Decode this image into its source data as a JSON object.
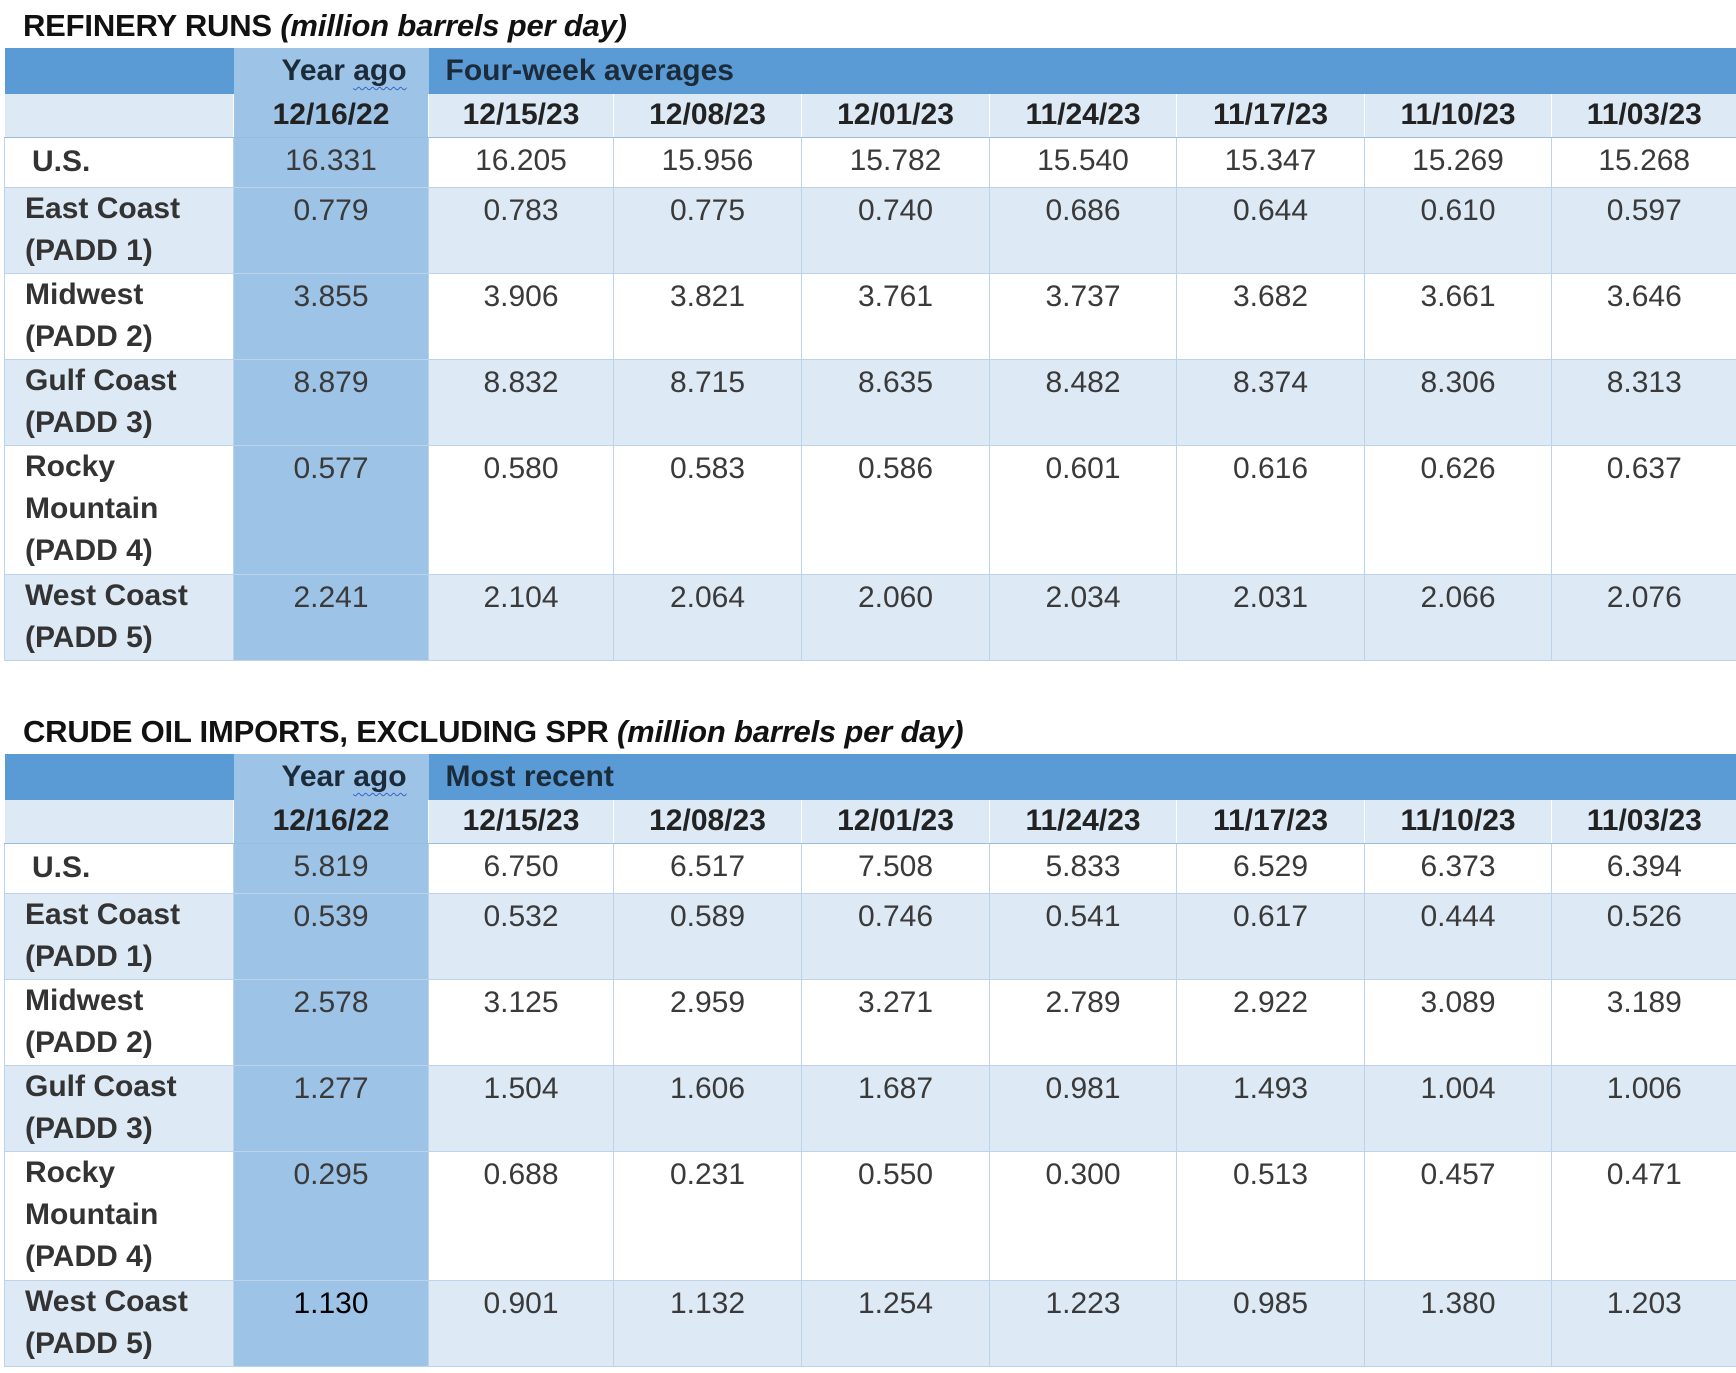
{
  "columns": {
    "year_ago": "12/16/22",
    "recent": [
      "12/15/23",
      "12/08/23",
      "12/01/23",
      "11/24/23",
      "11/17/23",
      "11/10/23",
      "11/03/23"
    ]
  },
  "refinery": {
    "title": "REFINERY RUNS",
    "unit": "(million barrels per day)",
    "year_ago_word1": "Year",
    "year_ago_word2": "ago",
    "group_label": "Four-week averages",
    "rows": [
      {
        "label": [
          "U.S."
        ],
        "values": [
          "16.331",
          "16.205",
          "15.956",
          "15.782",
          "15.540",
          "15.347",
          "15.269",
          "15.268"
        ]
      },
      {
        "label": [
          "East Coast",
          "(PADD 1)"
        ],
        "values": [
          "0.779",
          "0.783",
          "0.775",
          "0.740",
          "0.686",
          "0.644",
          "0.610",
          "0.597"
        ]
      },
      {
        "label": [
          "Midwest",
          "(PADD 2)"
        ],
        "values": [
          "3.855",
          "3.906",
          "3.821",
          "3.761",
          "3.737",
          "3.682",
          "3.661",
          "3.646"
        ]
      },
      {
        "label": [
          "Gulf Coast",
          "(PADD 3)"
        ],
        "values": [
          "8.879",
          "8.832",
          "8.715",
          "8.635",
          "8.482",
          "8.374",
          "8.306",
          "8.313"
        ]
      },
      {
        "label": [
          "Rocky",
          "Mountain",
          "(PADD 4)"
        ],
        "values": [
          "0.577",
          "0.580",
          "0.583",
          "0.586",
          "0.601",
          "0.616",
          "0.626",
          "0.637"
        ]
      },
      {
        "label": [
          "West Coast",
          "(PADD 5)"
        ],
        "values": [
          "2.241",
          "2.104",
          "2.064",
          "2.060",
          "2.034",
          "2.031",
          "2.066",
          "2.076"
        ]
      }
    ]
  },
  "imports": {
    "title": "CRUDE OIL IMPORTS, EXCLUDING SPR",
    "unit": "(million barrels per day)",
    "year_ago_word1": "Year",
    "year_ago_word2": "ago",
    "group_label": "Most recent",
    "rows": [
      {
        "label": [
          "U.S."
        ],
        "values": [
          "5.819",
          "6.750",
          "6.517",
          "7.508",
          "5.833",
          "6.529",
          "6.373",
          "6.394"
        ]
      },
      {
        "label": [
          "East Coast",
          "(PADD 1)"
        ],
        "values": [
          "0.539",
          "0.532",
          "0.589",
          "0.746",
          "0.541",
          "0.617",
          "0.444",
          "0.526"
        ]
      },
      {
        "label": [
          "Midwest",
          "(PADD 2)"
        ],
        "values": [
          "2.578",
          "3.125",
          "2.959",
          "3.271",
          "2.789",
          "2.922",
          "3.089",
          "3.189"
        ]
      },
      {
        "label": [
          "Gulf Coast",
          "(PADD 3)"
        ],
        "values": [
          "1.277",
          "1.504",
          "1.606",
          "1.687",
          "0.981",
          "1.493",
          "1.004",
          "1.006"
        ]
      },
      {
        "label": [
          "Rocky",
          "Mountain",
          "(PADD 4)"
        ],
        "values": [
          "0.295",
          "0.688",
          "0.231",
          "0.550",
          "0.300",
          "0.513",
          "0.457",
          "0.471"
        ]
      },
      {
        "label": [
          "West Coast",
          "(PADD 5)"
        ],
        "values": [
          "1.130",
          "0.901",
          "1.132",
          "1.254",
          "1.223",
          "0.985",
          "1.380",
          "1.203"
        ]
      }
    ]
  }
}
